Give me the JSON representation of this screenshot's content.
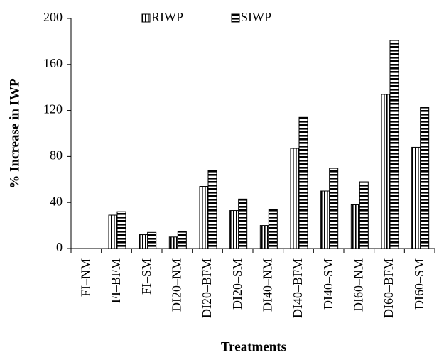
{
  "chart_data": {
    "type": "bar",
    "ylabel": "% Increase in IWP",
    "xlabel": "Treatments",
    "categories": [
      "FI–NM",
      "FI–BFM",
      "FI–SM",
      "DI20–NM",
      "DI20–BFM",
      "DI20–SM",
      "DI40–NM",
      "DI40–BFM",
      "DI40–SM",
      "DI60–NM",
      "DI60–BFM",
      "DI60–SM"
    ],
    "series": [
      {
        "name": "RIWP",
        "color": "#000000",
        "pattern": "vertical",
        "values": [
          0,
          29,
          12,
          10,
          54,
          33,
          20,
          87,
          50,
          38,
          134,
          88
        ]
      },
      {
        "name": "SIWP",
        "color": "#000000",
        "pattern": "horizontal",
        "values": [
          0,
          32,
          14,
          15,
          68,
          43,
          34,
          114,
          70,
          58,
          181,
          123
        ]
      }
    ],
    "ylim": [
      0,
      200
    ],
    "yticks": [
      0,
      40,
      80,
      120,
      160,
      200
    ],
    "legend": "top"
  }
}
